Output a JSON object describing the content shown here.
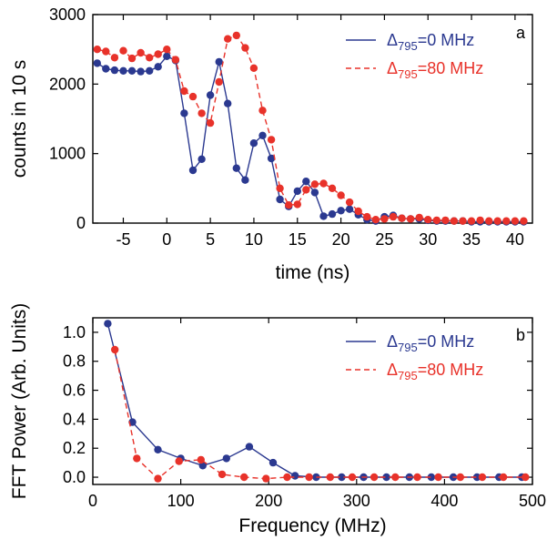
{
  "colors": {
    "blue": "#2b3990",
    "red": "#e8322a"
  },
  "chart_data": [
    {
      "type": "line",
      "panel_label": "a",
      "xlabel": "time (ns)",
      "ylabel": "counts in 10 s",
      "xlim": [
        -8.5,
        42
      ],
      "ylim": [
        0,
        3000
      ],
      "xticks": [
        -5,
        0,
        5,
        10,
        15,
        20,
        25,
        30,
        35,
        40
      ],
      "yticks": [
        0,
        1000,
        2000,
        3000
      ],
      "legend_position": "top-right",
      "series": [
        {
          "legend_prefix": "Δ",
          "legend_sub": "795",
          "legend_suffix": "=0 MHz",
          "color": "#2b3990",
          "style": "solid",
          "x": [
            -8,
            -7,
            -6,
            -5,
            -4,
            -3,
            -2,
            -1,
            0,
            1,
            2,
            3,
            4,
            5,
            6,
            7,
            8,
            9,
            10,
            11,
            12,
            13,
            14,
            15,
            16,
            17,
            18,
            19,
            20,
            21,
            22,
            23,
            24,
            25,
            26,
            27,
            28,
            29,
            30,
            31,
            32,
            33,
            34,
            35,
            36,
            37,
            38,
            39,
            40,
            41
          ],
          "y": [
            2300,
            2220,
            2200,
            2190,
            2190,
            2180,
            2190,
            2250,
            2400,
            2340,
            1580,
            760,
            920,
            1840,
            2320,
            1720,
            790,
            620,
            1150,
            1260,
            930,
            340,
            240,
            460,
            600,
            440,
            100,
            130,
            180,
            200,
            120,
            50,
            30,
            90,
            110,
            70,
            60,
            60,
            40,
            30,
            30,
            30,
            30,
            20,
            20,
            20,
            20,
            20,
            20,
            20
          ]
        },
        {
          "legend_prefix": "Δ",
          "legend_sub": "795",
          "legend_suffix": "=80 MHz",
          "color": "#e8322a",
          "style": "dashed",
          "x": [
            -8,
            -7,
            -6,
            -5,
            -4,
            -3,
            -2,
            -1,
            0,
            1,
            2,
            3,
            4,
            5,
            6,
            7,
            8,
            9,
            10,
            11,
            12,
            13,
            14,
            15,
            16,
            17,
            18,
            19,
            20,
            21,
            22,
            23,
            24,
            25,
            26,
            27,
            28,
            29,
            30,
            31,
            32,
            33,
            34,
            35,
            36,
            37,
            38,
            39,
            40,
            41
          ],
          "y": [
            2500,
            2470,
            2380,
            2480,
            2370,
            2450,
            2380,
            2430,
            2500,
            2350,
            1900,
            1820,
            1580,
            1440,
            2030,
            2650,
            2700,
            2520,
            2230,
            1620,
            1200,
            500,
            260,
            270,
            480,
            560,
            570,
            500,
            400,
            300,
            170,
            90,
            50,
            60,
            90,
            70,
            60,
            80,
            50,
            40,
            40,
            30,
            30,
            30,
            40,
            30,
            30,
            30,
            30,
            30
          ]
        }
      ]
    },
    {
      "type": "line",
      "panel_label": "b",
      "xlabel": "Frequency (MHz)",
      "ylabel": "FFT Power (Arb. Units)",
      "xlim": [
        0,
        500
      ],
      "ylim": [
        -0.05,
        1.1
      ],
      "xticks": [
        0,
        100,
        200,
        300,
        400,
        500
      ],
      "yticks": [
        0.0,
        0.2,
        0.4,
        0.6,
        0.8,
        1.0
      ],
      "legend_position": "top-right",
      "series": [
        {
          "legend_prefix": "Δ",
          "legend_sub": "795",
          "legend_suffix": "=0 MHz",
          "color": "#2b3990",
          "style": "solid",
          "x": [
            17,
            45,
            74,
            100,
            125,
            152,
            178,
            205,
            230,
            254,
            283,
            308,
            334,
            360,
            385,
            410,
            437,
            462,
            488
          ],
          "y": [
            1.06,
            0.38,
            0.19,
            0.13,
            0.08,
            0.13,
            0.21,
            0.1,
            0.01,
            0.0,
            0.0,
            0.0,
            0.0,
            0.0,
            0.0,
            0.0,
            0.0,
            0.0,
            0.0
          ]
        },
        {
          "legend_prefix": "Δ",
          "legend_sub": "795",
          "legend_suffix": "=80 MHz",
          "color": "#e8322a",
          "style": "dashed",
          "x": [
            25,
            50,
            74,
            98,
            123,
            147,
            172,
            197,
            221,
            246,
            270,
            295,
            320,
            344,
            369,
            393,
            418,
            443,
            467,
            492
          ],
          "y": [
            0.88,
            0.13,
            -0.01,
            0.11,
            0.12,
            0.02,
            0.0,
            -0.01,
            0.0,
            0.0,
            0.0,
            0.0,
            0.0,
            0.0,
            0.0,
            0.0,
            0.0,
            0.0,
            0.0,
            0.0
          ]
        }
      ]
    }
  ]
}
